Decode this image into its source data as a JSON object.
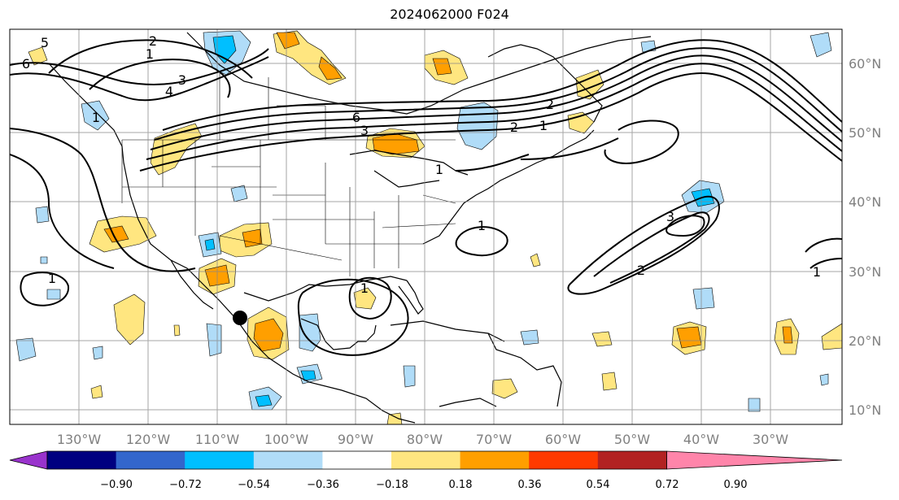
{
  "title": "2024062000 F024",
  "map": {
    "lon_labels": [
      "130°W",
      "120°W",
      "110°W",
      "100°W",
      "90°W",
      "80°W",
      "70°W",
      "60°W",
      "50°W",
      "40°W",
      "30°W"
    ],
    "lat_labels": [
      "60°N",
      "50°N",
      "40°N",
      "30°N",
      "20°N",
      "10°N"
    ],
    "contour_labels": [
      "5",
      "6",
      "2",
      "1",
      "3",
      "4",
      "6",
      "3",
      "2",
      "1",
      "1",
      "1",
      "2",
      "1",
      "1",
      "1",
      "3",
      "2",
      "1"
    ],
    "marker": {
      "type": "dot",
      "color": "#000000"
    }
  },
  "colorbar": {
    "tick_labels": [
      "−0.90",
      "−0.72",
      "−0.54",
      "−0.36",
      "−0.18",
      "0.18",
      "0.36",
      "0.54",
      "0.72",
      "0.90"
    ],
    "colors": [
      "#9933cc",
      "#000080",
      "#3366cc",
      "#00bfff",
      "#b0dcf8",
      "#ffffff",
      "#ffe680",
      "#ff9f00",
      "#ff3a00",
      "#b22222",
      "#ff85aa"
    ]
  }
}
